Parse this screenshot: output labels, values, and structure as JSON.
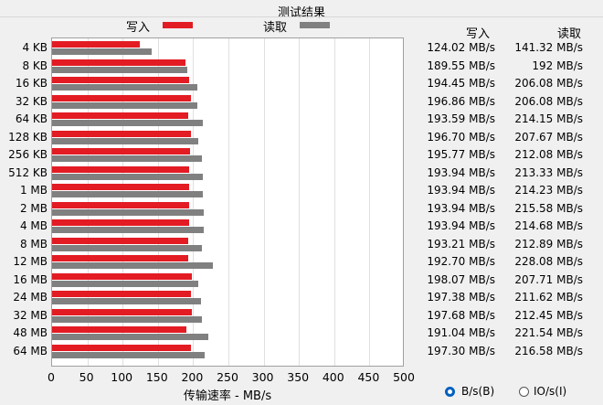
{
  "title": "测试结果",
  "legend": {
    "write_label": "写入",
    "read_label": "读取",
    "write_color": "#e31b23",
    "read_color": "#808080"
  },
  "table_headers": {
    "write": "写入",
    "read": "读取"
  },
  "rows": [
    {
      "size": "4 KB",
      "write": 124.02,
      "read": 141.32,
      "write_text": "124.02 MB/s",
      "read_text": "141.32 MB/s"
    },
    {
      "size": "8 KB",
      "write": 189.55,
      "read": 192,
      "write_text": "189.55 MB/s",
      "read_text": "192 MB/s"
    },
    {
      "size": "16 KB",
      "write": 194.45,
      "read": 206.08,
      "write_text": "194.45 MB/s",
      "read_text": "206.08 MB/s"
    },
    {
      "size": "32 KB",
      "write": 196.86,
      "read": 206.08,
      "write_text": "196.86 MB/s",
      "read_text": "206.08 MB/s"
    },
    {
      "size": "64 KB",
      "write": 193.59,
      "read": 214.15,
      "write_text": "193.59 MB/s",
      "read_text": "214.15 MB/s"
    },
    {
      "size": "128 KB",
      "write": 196.7,
      "read": 207.67,
      "write_text": "196.70 MB/s",
      "read_text": "207.67 MB/s"
    },
    {
      "size": "256 KB",
      "write": 195.77,
      "read": 212.08,
      "write_text": "195.77 MB/s",
      "read_text": "212.08 MB/s"
    },
    {
      "size": "512 KB",
      "write": 193.94,
      "read": 213.33,
      "write_text": "193.94 MB/s",
      "read_text": "213.33 MB/s"
    },
    {
      "size": "1 MB",
      "write": 193.94,
      "read": 214.23,
      "write_text": "193.94 MB/s",
      "read_text": "214.23 MB/s"
    },
    {
      "size": "2 MB",
      "write": 193.94,
      "read": 215.58,
      "write_text": "193.94 MB/s",
      "read_text": "215.58 MB/s"
    },
    {
      "size": "4 MB",
      "write": 193.94,
      "read": 214.68,
      "write_text": "193.94 MB/s",
      "read_text": "214.68 MB/s"
    },
    {
      "size": "8 MB",
      "write": 193.21,
      "read": 212.89,
      "write_text": "193.21 MB/s",
      "read_text": "212.89 MB/s"
    },
    {
      "size": "12 MB",
      "write": 192.7,
      "read": 228.08,
      "write_text": "192.70 MB/s",
      "read_text": "228.08 MB/s"
    },
    {
      "size": "16 MB",
      "write": 198.07,
      "read": 207.71,
      "write_text": "198.07 MB/s",
      "read_text": "207.71 MB/s"
    },
    {
      "size": "24 MB",
      "write": 197.38,
      "read": 211.62,
      "write_text": "197.38 MB/s",
      "read_text": "211.62 MB/s"
    },
    {
      "size": "32 MB",
      "write": 197.68,
      "read": 212.45,
      "write_text": "197.68 MB/s",
      "read_text": "212.45 MB/s"
    },
    {
      "size": "48 MB",
      "write": 191.04,
      "read": 221.54,
      "write_text": "191.04 MB/s",
      "read_text": "221.54 MB/s"
    },
    {
      "size": "64 MB",
      "write": 197.3,
      "read": 216.58,
      "write_text": "197.30 MB/s",
      "read_text": "216.58 MB/s"
    }
  ],
  "x_axis": {
    "label": "传输速率 - MB/s",
    "ticks": [
      "0",
      "50",
      "100",
      "150",
      "200",
      "250",
      "300",
      "350",
      "400",
      "450",
      "500"
    ],
    "max": 500
  },
  "units": {
    "bytes_label": "B/s(B)",
    "io_label": "IO/s(I)",
    "selected": "bytes"
  }
}
